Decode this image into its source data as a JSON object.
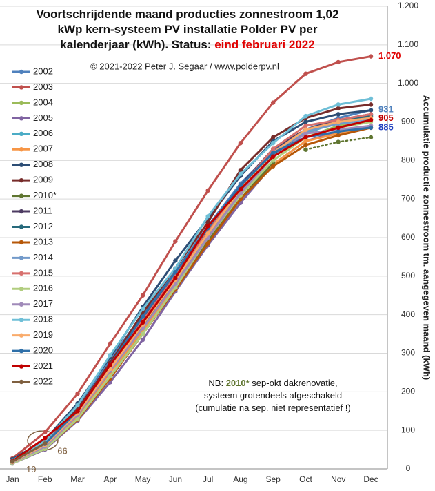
{
  "chart_data": {
    "type": "line",
    "title_lines": [
      [
        {
          "text": "Voortschrijdende  maand  producties  zonnestroom 1,02"
        }
      ],
      [
        {
          "text": "kWp kern-systeem PV installatie  Polder PV per"
        }
      ],
      [
        {
          "text": "kalenderjaar (kWh). Status: "
        },
        {
          "text": "eind februari 2022",
          "color": "#e00000"
        }
      ]
    ],
    "subtitle": "© 2021-2022  Peter J. Segaar / www.polderpv.nl",
    "y_axis_label": "Accumulatie productie zonnestroom tm. aangegeven maand (kWh)",
    "categories": [
      "Jan",
      "Feb",
      "Mar",
      "Apr",
      "May",
      "Jun",
      "Jul",
      "Aug",
      "Sep",
      "Oct",
      "Nov",
      "Dec"
    ],
    "ylim": [
      0,
      1200
    ],
    "yticks": [
      0,
      100,
      200,
      300,
      400,
      500,
      600,
      700,
      800,
      900,
      {
        "value": 1000,
        "label": "1.000"
      },
      {
        "value": 1100,
        "label": "1.100"
      },
      {
        "value": 1200,
        "label": "1.200"
      }
    ],
    "grid": true,
    "series": [
      {
        "name": "2002",
        "color": "#4f81bd",
        "values": [
          22,
          70,
          160,
          285,
          400,
          510,
          630,
          740,
          825,
          880,
          910,
          931
        ]
      },
      {
        "name": "2003",
        "color": "#c0504d",
        "values": [
          27,
          95,
          195,
          325,
          450,
          590,
          722,
          845,
          950,
          1025,
          1055,
          1070
        ]
      },
      {
        "name": "2004",
        "color": "#9bbb59",
        "values": [
          15,
          55,
          130,
          240,
          355,
          470,
          590,
          710,
          800,
          860,
          890,
          905
        ]
      },
      {
        "name": "2005",
        "color": "#8064a2",
        "values": [
          14,
          50,
          125,
          225,
          335,
          460,
          580,
          690,
          790,
          850,
          875,
          890
        ]
      },
      {
        "name": "2006",
        "color": "#4bacc6",
        "values": [
          18,
          60,
          140,
          255,
          370,
          480,
          605,
          720,
          810,
          870,
          900,
          915
        ]
      },
      {
        "name": "2007",
        "color": "#f79646",
        "values": [
          16,
          58,
          135,
          250,
          360,
          475,
          600,
          715,
          790,
          850,
          870,
          885
        ]
      },
      {
        "name": "2008",
        "color": "#2c4d75",
        "values": [
          25,
          75,
          170,
          290,
          420,
          540,
          650,
          760,
          850,
          900,
          920,
          930
        ]
      },
      {
        "name": "2009",
        "color": "#772c2a",
        "values": [
          20,
          68,
          155,
          275,
          405,
          520,
          640,
          775,
          860,
          910,
          935,
          945
        ]
      },
      {
        "name": "2010*",
        "color": "#5f7530",
        "dotted_after": 8,
        "values": [
          17,
          60,
          140,
          255,
          370,
          480,
          590,
          700,
          795,
          828,
          848,
          860
        ]
      },
      {
        "name": "2011",
        "color": "#4d3b62",
        "values": [
          20,
          65,
          150,
          270,
          390,
          500,
          620,
          735,
          830,
          880,
          905,
          920
        ]
      },
      {
        "name": "2012",
        "color": "#276a7c",
        "values": [
          20,
          62,
          145,
          265,
          380,
          490,
          610,
          725,
          815,
          875,
          900,
          915
        ]
      },
      {
        "name": "2013",
        "color": "#b65708",
        "values": [
          15,
          52,
          128,
          235,
          350,
          465,
          585,
          700,
          785,
          840,
          865,
          885
        ]
      },
      {
        "name": "2014",
        "color": "#729aca",
        "values": [
          18,
          62,
          150,
          265,
          380,
          495,
          615,
          730,
          820,
          875,
          895,
          905
        ]
      },
      {
        "name": "2015",
        "color": "#d7706e",
        "values": [
          20,
          66,
          150,
          270,
          385,
          500,
          615,
          730,
          830,
          890,
          905,
          920
        ]
      },
      {
        "name": "2016",
        "color": "#b1cd7f",
        "values": [
          14,
          52,
          130,
          240,
          350,
          470,
          600,
          710,
          800,
          860,
          885,
          900
        ]
      },
      {
        "name": "2017",
        "color": "#a08ab9",
        "values": [
          17,
          58,
          140,
          255,
          365,
          480,
          600,
          715,
          810,
          870,
          880,
          890
        ]
      },
      {
        "name": "2018",
        "color": "#6fbfd7",
        "values": [
          22,
          72,
          165,
          295,
          415,
          520,
          655,
          765,
          845,
          915,
          945,
          960
        ]
      },
      {
        "name": "2019",
        "color": "#f9ab6b",
        "values": [
          18,
          62,
          145,
          260,
          375,
          490,
          610,
          725,
          820,
          880,
          900,
          910
        ]
      },
      {
        "name": "2020",
        "color": "#2e6fa8",
        "values": [
          20,
          65,
          150,
          270,
          395,
          510,
          625,
          735,
          820,
          860,
          875,
          885
        ]
      },
      {
        "name": "2021",
        "color": "#c00000",
        "values": [
          20,
          80,
          150,
          270,
          380,
          495,
          630,
          725,
          810,
          860,
          885,
          905
        ]
      },
      {
        "name": "2022",
        "color": "#7f6040",
        "values": [
          19,
          66,
          null,
          null,
          null,
          null,
          null,
          null,
          null,
          null,
          null,
          null
        ]
      }
    ],
    "annotations": [
      {
        "text": "1.070",
        "color": "#e00000",
        "value": 1070,
        "month": 11
      },
      {
        "text": "931",
        "color": "#4f81bd",
        "value": 931,
        "month": 11
      },
      {
        "text": "905",
        "color": "#c00000",
        "value": 905,
        "month": 11
      },
      {
        "text": "885",
        "color": "#1f3fbf",
        "value": 885,
        "month": 11
      },
      {
        "text": "19",
        "color": "#7f6040",
        "value": 19,
        "month": 0
      },
      {
        "text": "66",
        "color": "#7f6040",
        "value": 66,
        "month": 1
      }
    ],
    "note_lines": [
      [
        {
          "text": "NB: "
        },
        {
          "text": "2010*",
          "color": "#5f7530",
          "bold": true
        },
        {
          "text": " sep-okt dakrenovatie,"
        }
      ],
      [
        {
          "text": "systeem grotendeels afgeschakeld"
        }
      ],
      [
        {
          "text": "(cumulatie na sep. niet representatief !)"
        }
      ]
    ]
  }
}
